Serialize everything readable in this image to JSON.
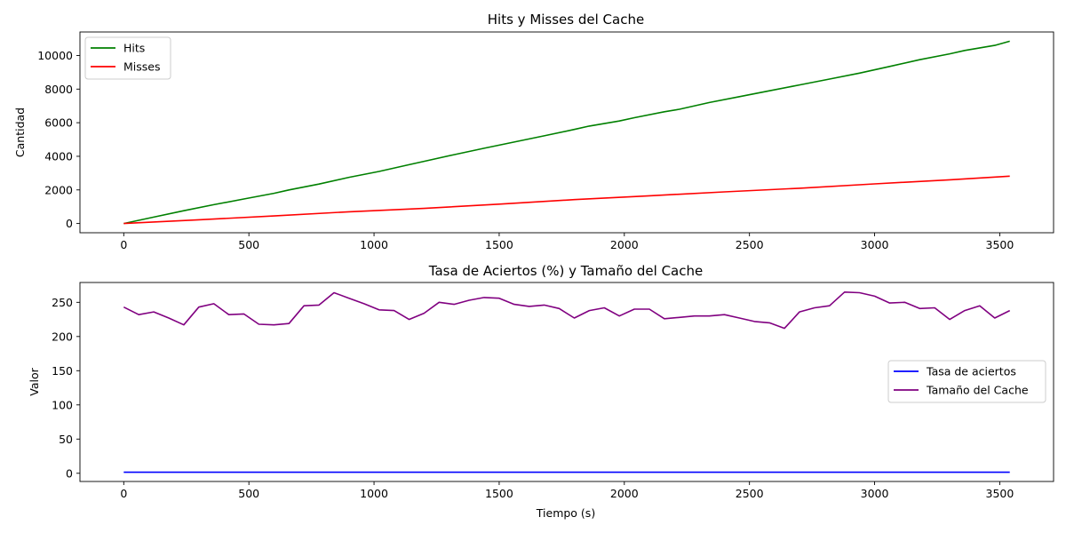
{
  "chart_data": [
    {
      "type": "line",
      "title": "Hits y Misses del Cache",
      "xlabel": "",
      "ylabel": "Cantidad",
      "xlim": [
        -175,
        3715
      ],
      "ylim": [
        -550,
        11400
      ],
      "xticks": [
        0,
        500,
        1000,
        1500,
        2000,
        2500,
        3000,
        3500
      ],
      "xtick_labels": [
        "0",
        "500",
        "1000",
        "1500",
        "2000",
        "2500",
        "3000",
        "3500"
      ],
      "yticks": [
        0,
        2000,
        4000,
        6000,
        8000,
        10000
      ],
      "ytick_labels": [
        "0",
        "2000",
        "4000",
        "6000",
        "8000",
        "10000"
      ],
      "grid": false,
      "legend_position": "top-left",
      "series": [
        {
          "name": "Hits",
          "color": "#008000",
          "x": [
            0,
            120,
            240,
            360,
            480,
            600,
            660,
            780,
            900,
            1020,
            1140,
            1200,
            1320,
            1440,
            1560,
            1680,
            1800,
            1860,
            1980,
            2040,
            2160,
            2220,
            2340,
            2460,
            2580,
            2700,
            2820,
            2940,
            3060,
            3180,
            3300,
            3360,
            3480,
            3540
          ],
          "y": [
            0,
            380,
            760,
            1120,
            1460,
            1800,
            2000,
            2350,
            2750,
            3100,
            3500,
            3700,
            4100,
            4480,
            4850,
            5220,
            5600,
            5800,
            6100,
            6300,
            6650,
            6800,
            7200,
            7550,
            7900,
            8250,
            8600,
            8950,
            9350,
            9750,
            10100,
            10300,
            10600,
            10850
          ]
        },
        {
          "name": "Misses",
          "color": "#ff0000",
          "x": [
            0,
            300,
            600,
            900,
            1200,
            1500,
            1800,
            2100,
            2400,
            2700,
            3000,
            3300,
            3540
          ],
          "y": [
            0,
            220,
            450,
            700,
            900,
            1150,
            1420,
            1650,
            1880,
            2100,
            2360,
            2600,
            2820
          ]
        }
      ]
    },
    {
      "type": "line",
      "title": "Tasa de Aciertos (%) y Tamaño del Cache",
      "xlabel": "Tiempo (s)",
      "ylabel": "Valor",
      "xlim": [
        -175,
        3715
      ],
      "ylim": [
        -12,
        279
      ],
      "xticks": [
        0,
        500,
        1000,
        1500,
        2000,
        2500,
        3000,
        3500
      ],
      "xtick_labels": [
        "0",
        "500",
        "1000",
        "1500",
        "2000",
        "2500",
        "3000",
        "3500"
      ],
      "yticks": [
        0,
        50,
        100,
        150,
        200,
        250
      ],
      "ytick_labels": [
        "0",
        "50",
        "100",
        "150",
        "200",
        "250"
      ],
      "grid": false,
      "legend_position": "center-right",
      "series": [
        {
          "name": "Tasa de aciertos",
          "color": "#0000ff",
          "x": [
            0,
            3540
          ],
          "y": [
            1.5,
            1.5
          ]
        },
        {
          "name": "Tamaño del Cache",
          "color": "#800080",
          "x": [
            0,
            60,
            120,
            180,
            240,
            300,
            360,
            420,
            480,
            540,
            600,
            660,
            720,
            780,
            840,
            900,
            960,
            1020,
            1080,
            1140,
            1200,
            1260,
            1320,
            1380,
            1440,
            1500,
            1560,
            1620,
            1680,
            1740,
            1800,
            1860,
            1920,
            1980,
            2040,
            2100,
            2160,
            2220,
            2280,
            2340,
            2400,
            2460,
            2520,
            2580,
            2640,
            2700,
            2760,
            2820,
            2880,
            2940,
            3000,
            3060,
            3120,
            3180,
            3240,
            3300,
            3360,
            3420,
            3480,
            3540
          ],
          "y": [
            243,
            232,
            236,
            227,
            217,
            243,
            248,
            232,
            233,
            218,
            217,
            219,
            245,
            246,
            264,
            256,
            248,
            239,
            238,
            225,
            234,
            250,
            247,
            253,
            257,
            256,
            247,
            244,
            246,
            241,
            227,
            238,
            242,
            230,
            240,
            240,
            226,
            228,
            230,
            230,
            232,
            227,
            222,
            220,
            212,
            236,
            242,
            245,
            265,
            264,
            259,
            249,
            250,
            241,
            242,
            225,
            238,
            245,
            227,
            238
          ]
        }
      ]
    }
  ]
}
